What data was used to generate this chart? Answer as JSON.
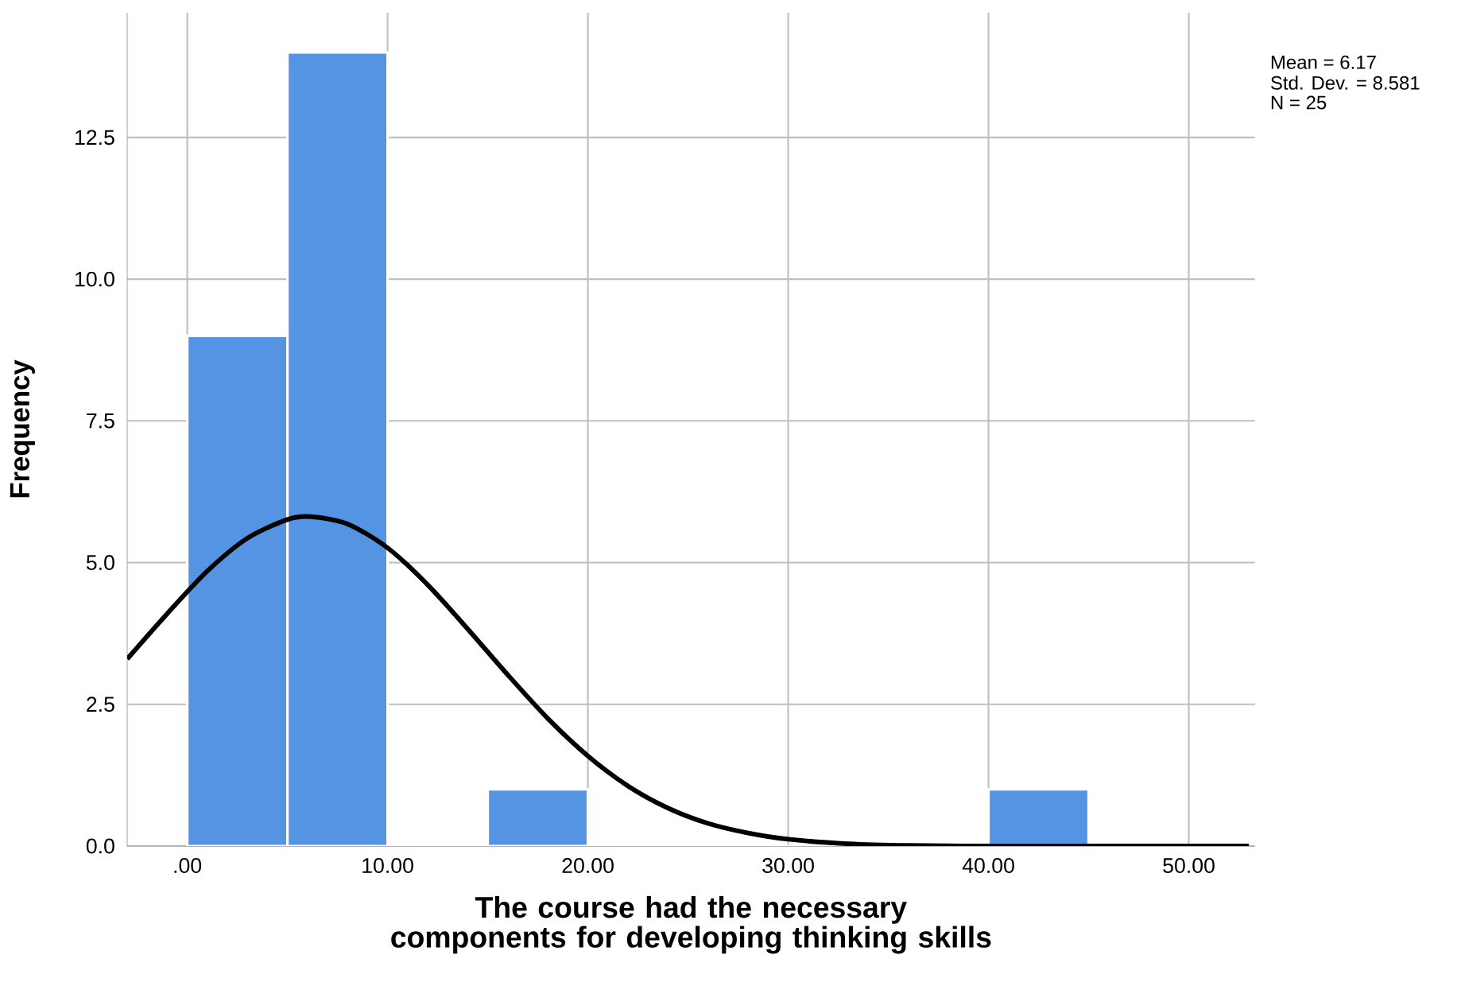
{
  "chart_data": {
    "type": "histogram",
    "xlabel": "The course had the necessary components for developing thinking skills",
    "ylabel": "Frequency",
    "annotations": [
      "Mean = 6.17",
      "Std. Dev. = 8.581",
      "N = 25"
    ],
    "series": [
      {
        "color": "#5594e2",
        "bins": [
          0,
          5,
          10,
          15,
          20,
          25,
          30,
          35,
          40,
          45
        ],
        "values": [
          9,
          14,
          0,
          1,
          0,
          0,
          0,
          0,
          1
        ]
      },
      {
        "type": "line",
        "color": "#000000",
        "x": [
          -3,
          -1,
          1,
          3,
          5,
          6.17,
          8,
          10,
          12,
          14,
          16,
          18,
          20,
          22,
          24,
          26,
          28,
          30,
          33,
          36,
          40,
          46,
          53
        ],
        "values": [
          3.3,
          4.1,
          4.85,
          5.43,
          5.76,
          5.81,
          5.68,
          5.26,
          4.61,
          3.83,
          3.02,
          2.25,
          1.59,
          1.06,
          0.67,
          0.4,
          0.23,
          0.12,
          0.04,
          0.01,
          0,
          0,
          0
        ]
      }
    ],
    "xlim": [
      -3,
      53.3
    ],
    "ylim": [
      0,
      14.7
    ],
    "xticks": [
      {
        "value": 0,
        "label": ".00"
      },
      {
        "value": 10,
        "label": "10.00"
      },
      {
        "value": 20,
        "label": "20.00"
      },
      {
        "value": 30,
        "label": "30.00"
      },
      {
        "value": 40,
        "label": "40.00"
      },
      {
        "value": 50,
        "label": "50.00"
      }
    ],
    "yticks": [
      {
        "value": 0,
        "label": "0.0"
      },
      {
        "value": 2.5,
        "label": "2.5"
      },
      {
        "value": 5,
        "label": "5.0"
      },
      {
        "value": 7.5,
        "label": "7.5"
      },
      {
        "value": 10,
        "label": "10.0"
      },
      {
        "value": 12.5,
        "label": "12.5"
      }
    ],
    "grid": true
  }
}
